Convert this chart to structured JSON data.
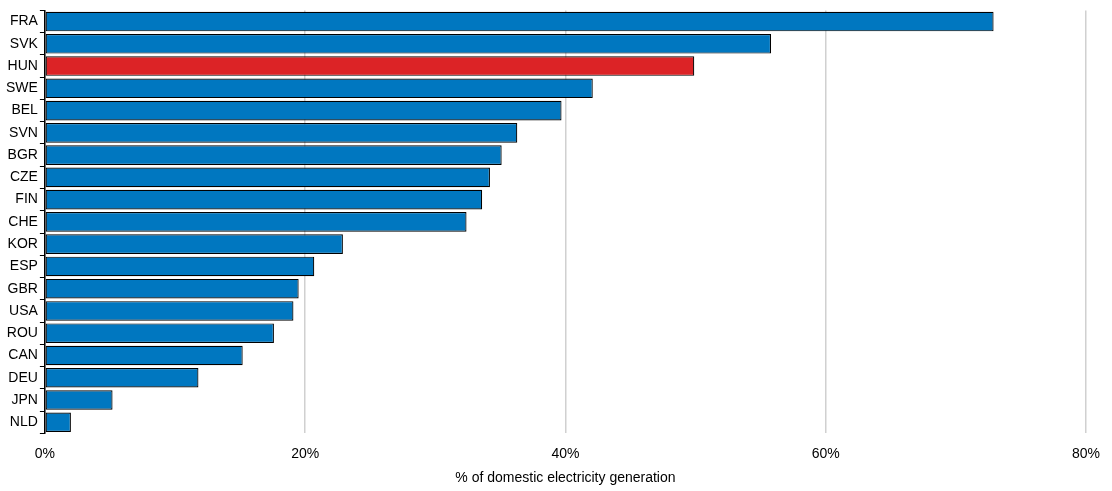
{
  "chart_data": {
    "type": "bar",
    "orientation": "horizontal",
    "xlabel": "% of domestic electricity generation",
    "categories": [
      "FRA",
      "SVK",
      "HUN",
      "SWE",
      "BEL",
      "SVN",
      "BGR",
      "CZE",
      "FIN",
      "CHE",
      "KOR",
      "ESP",
      "GBR",
      "USA",
      "ROU",
      "CAN",
      "DEU",
      "JPN",
      "NLD"
    ],
    "values": [
      72.9,
      55.8,
      49.9,
      42.1,
      39.7,
      36.3,
      35.1,
      34.2,
      33.6,
      32.4,
      22.9,
      20.7,
      19.5,
      19.1,
      17.6,
      15.2,
      11.8,
      5.2,
      2.0
    ],
    "colors": [
      "#0077c0",
      "#0077c0",
      "#dc2326",
      "#0077c0",
      "#0077c0",
      "#0077c0",
      "#0077c0",
      "#0077c0",
      "#0077c0",
      "#0077c0",
      "#0077c0",
      "#0077c0",
      "#0077c0",
      "#0077c0",
      "#0077c0",
      "#0077c0",
      "#0077c0",
      "#0077c0",
      "#0077c0"
    ],
    "xlim": [
      0,
      80
    ],
    "xticks": [
      {
        "value": 0,
        "label": "0%"
      },
      {
        "value": 20,
        "label": "20%"
      },
      {
        "value": 40,
        "label": "40%"
      },
      {
        "value": 60,
        "label": "60%"
      },
      {
        "value": 80,
        "label": "80%"
      }
    ],
    "grid": "x",
    "legend": false
  }
}
